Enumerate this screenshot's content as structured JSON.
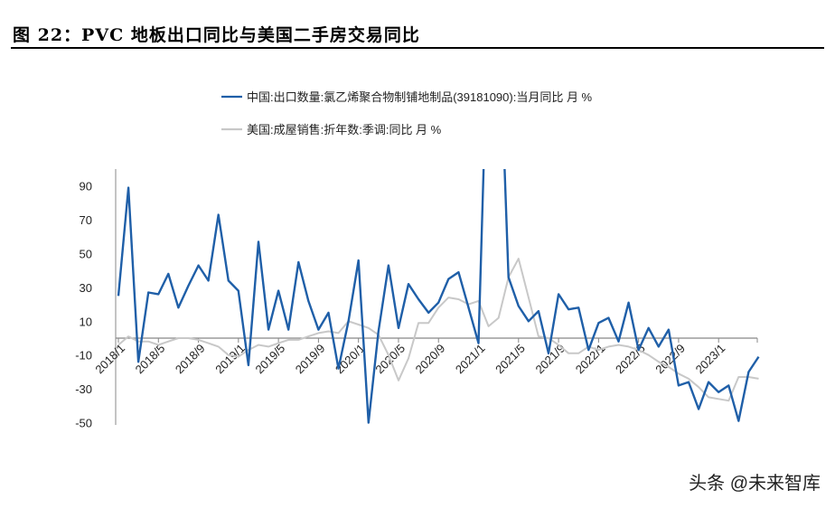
{
  "title": "图 22：PVC 地板出口同比与美国二手房交易同比",
  "watermark": "头条 @未来智库",
  "chart_data": {
    "type": "line",
    "title": "图 22：PVC 地板出口同比与美国二手房交易同比",
    "xlabel": "",
    "ylabel": "",
    "ylim": [
      -50,
      100
    ],
    "yticks": [
      "90",
      "70",
      "50",
      "30",
      "10",
      "-10",
      "-30",
      "-50"
    ],
    "ytick_values": [
      90,
      70,
      50,
      30,
      10,
      -10,
      -30,
      -50
    ],
    "xtick_labels": [
      "2018/1",
      "2018/5",
      "2018/9",
      "2019/1",
      "2019/5",
      "2019/9",
      "2020/1",
      "2020/5",
      "2020/9",
      "2021/1",
      "2021/5",
      "2021/9",
      "2022/1",
      "2022/5",
      "2022/9",
      "2023/1"
    ],
    "x_start": "2018/1",
    "x_end": "2023/5",
    "legend_position": "top",
    "grid": false,
    "series": [
      {
        "name": "中国:出口数量:氯乙烯聚合物制铺地制品(39181090):当月同比 月 %",
        "color": "#1f5fa8",
        "values": [
          25,
          89,
          -14,
          27,
          26,
          38,
          18,
          31,
          43,
          34,
          73,
          34,
          28,
          -16,
          57,
          5,
          28,
          5,
          45,
          22,
          5,
          15,
          -18,
          10,
          46,
          -50,
          4,
          43,
          6,
          32,
          23,
          15,
          21,
          35,
          39,
          18,
          -3,
          200,
          200,
          36,
          19,
          10,
          16,
          -9,
          26,
          17,
          18,
          -7,
          9,
          12,
          -2,
          21,
          -7,
          6,
          -5,
          5,
          -28,
          -26,
          -42,
          -26,
          -32,
          -28,
          -49,
          -20,
          -11
        ]
      },
      {
        "name": "美国:成屋销售:折年数:季调:同比 月 %",
        "color": "#c8c8c8",
        "values": [
          -4,
          1,
          -2,
          -2,
          -4,
          -2,
          0,
          0,
          -1,
          -3,
          -5,
          -10,
          -11,
          -7,
          -4,
          -5,
          -3,
          -1,
          -1,
          1,
          3,
          4,
          3,
          10,
          8,
          6,
          2,
          -10,
          -25,
          -12,
          9,
          9,
          18,
          24,
          23,
          20,
          22,
          7,
          12,
          36,
          47,
          24,
          1,
          0,
          -4,
          -9,
          -9,
          -5,
          -7,
          -5,
          -4,
          -5,
          -7,
          -10,
          -14,
          -17,
          -21,
          -24,
          -29,
          -35,
          -36,
          -37,
          -23,
          -23,
          -24
        ]
      }
    ]
  }
}
